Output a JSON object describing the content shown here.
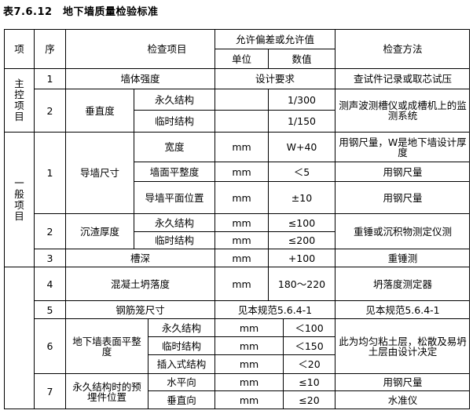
{
  "title": "表7.6.12　地下墙质量检验标准",
  "header": {
    "item": "项",
    "seq": "序",
    "check_item": "检查项目",
    "tolerance": "允许偏差或允许值",
    "unit": "单位",
    "value": "数值",
    "method": "检查方法"
  },
  "main_control": {
    "label": "主控项目",
    "rows": [
      {
        "seq": "1",
        "name": "墙体强度",
        "tolerance": "设计要求",
        "method": "查试件记录或取芯试压"
      },
      {
        "seq": "2",
        "name": "垂直度",
        "sub": [
          {
            "name": "永久结构",
            "unit": "",
            "value": "1/300"
          },
          {
            "name": "临时结构",
            "unit": "",
            "value": "1/150"
          }
        ],
        "method": "测声波测槽仪或成槽机上的监测系统"
      }
    ]
  },
  "general": {
    "label": "一般项目",
    "rows": [
      {
        "seq": "1",
        "name": "导墙尺寸",
        "sub": [
          {
            "name": "宽度",
            "unit": "mm",
            "value": "W+40",
            "method": "用钢尺量，W是地下墙设计厚度"
          },
          {
            "name": "墙面平整度",
            "unit": "mm",
            "value": "＜5",
            "method": "用钢尺量"
          },
          {
            "name": "导墙平面位置",
            "unit": "mm",
            "value": "±10",
            "method": "用钢尺量"
          }
        ]
      },
      {
        "seq": "2",
        "name": "沉渣厚度",
        "sub": [
          {
            "name": "永久结构",
            "unit": "mm",
            "value": "≤100"
          },
          {
            "name": "临时结构",
            "unit": "mm",
            "value": "≤200"
          }
        ],
        "method": "重锤或沉积物测定仪测"
      },
      {
        "seq": "3",
        "name": "槽深",
        "unit": "mm",
        "value": "+100",
        "method": "重锤测"
      }
    ]
  },
  "other": {
    "label": "",
    "rows": [
      {
        "seq": "4",
        "name": "混凝土坍落度",
        "unit": "mm",
        "value": "180～220",
        "method": "坍落度测定器"
      },
      {
        "seq": "5",
        "name": "钢筋笼尺寸",
        "tolerance": "见本规范5.6.4-1",
        "method": "见本规范5.6.4-1"
      },
      {
        "seq": "6",
        "name": "地下墙表面平整度",
        "sub": [
          {
            "name": "永久结构",
            "unit": "mm",
            "value": "＜100"
          },
          {
            "name": "临时结构",
            "unit": "mm",
            "value": "＜150"
          },
          {
            "name": "插入式结构",
            "unit": "mm",
            "value": "＜20"
          }
        ],
        "method": "此为均匀粘土层，松散及易坍土层由设计决定"
      },
      {
        "seq": "7",
        "name": "永久结构时的预埋件位置",
        "sub": [
          {
            "name": "水平向",
            "unit": "mm",
            "value": "≤10",
            "method": "用钢尺量"
          },
          {
            "name": "垂直向",
            "unit": "mm",
            "value": "≤20",
            "method": "水准仪"
          }
        ]
      }
    ]
  }
}
